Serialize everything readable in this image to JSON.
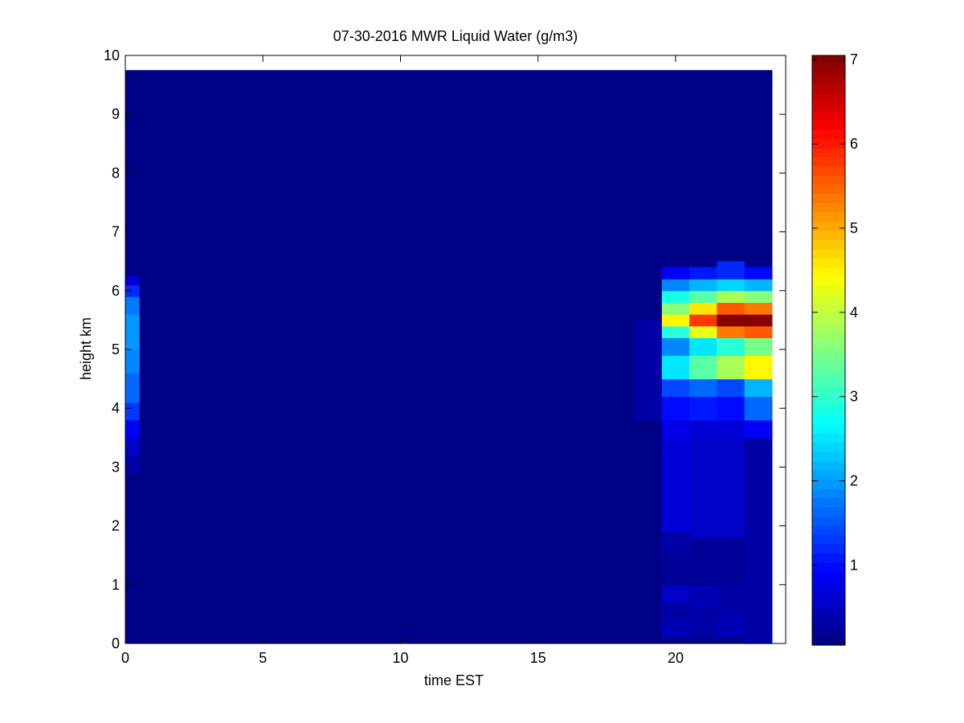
{
  "chart_data": {
    "type": "heatmap",
    "title": "07-30-2016 MWR Liquid Water (g/m3)",
    "xlabel": "time EST",
    "ylabel": "height km",
    "xlim": [
      0,
      24
    ],
    "ylim": [
      0,
      10
    ],
    "x_ticks": [
      0,
      5,
      10,
      15,
      20
    ],
    "y_ticks": [
      0,
      1,
      2,
      3,
      4,
      5,
      6,
      7,
      8,
      9,
      10
    ],
    "colorbar": {
      "colormap": "jet",
      "range": [
        0.05,
        7.05
      ],
      "ticks": [
        1,
        2,
        3,
        4,
        5,
        6,
        7
      ]
    },
    "background_value": 0.05,
    "time_bins": [
      {
        "x0": 0,
        "x1": 0.5,
        "height_range": [
          0,
          9.75
        ]
      },
      {
        "x0": 0.5,
        "x1": 18.5,
        "height_range": [
          0,
          9.75
        ]
      },
      {
        "x0": 18.5,
        "x1": 19.5,
        "height_range": [
          0,
          9.75
        ]
      },
      {
        "x0": 19.5,
        "x1": 20.5,
        "height_range": [
          0,
          9.75
        ]
      },
      {
        "x0": 20.5,
        "x1": 21.5,
        "height_range": [
          0,
          9.75
        ]
      },
      {
        "x0": 21.5,
        "x1": 22.5,
        "height_range": [
          0,
          9.75
        ]
      },
      {
        "x0": 22.5,
        "x1": 23.5,
        "height_range": [
          0,
          9.75
        ]
      }
    ],
    "columns": [
      {
        "time": 0,
        "cells": [
          {
            "z0": 2.9,
            "z1": 3.2,
            "value": 0.3
          },
          {
            "z0": 3.2,
            "z1": 3.5,
            "value": 0.5
          },
          {
            "z0": 3.5,
            "z1": 3.8,
            "value": 0.9
          },
          {
            "z0": 3.8,
            "z1": 4.1,
            "value": 1.3
          },
          {
            "z0": 4.1,
            "z1": 4.6,
            "value": 1.6
          },
          {
            "z0": 4.6,
            "z1": 5.0,
            "value": 1.8
          },
          {
            "z0": 5.0,
            "z1": 5.6,
            "value": 2.0
          },
          {
            "z0": 5.6,
            "z1": 5.9,
            "value": 1.7
          },
          {
            "z0": 5.9,
            "z1": 6.1,
            "value": 1.2
          },
          {
            "z0": 6.1,
            "z1": 6.25,
            "value": 0.6
          }
        ]
      },
      {
        "time": 19,
        "cells": [
          {
            "z0": 3.8,
            "z1": 5.5,
            "value": 0.3
          }
        ]
      },
      {
        "time": 20,
        "cells": [
          {
            "z0": 0.1,
            "z1": 0.4,
            "value": 0.4
          },
          {
            "z0": 0.4,
            "z1": 0.7,
            "value": 0.3
          },
          {
            "z0": 0.7,
            "z1": 1.0,
            "value": 0.5
          },
          {
            "z0": 1.0,
            "z1": 1.5,
            "value": 0.2
          },
          {
            "z0": 1.5,
            "z1": 1.9,
            "value": 0.3
          },
          {
            "z0": 1.9,
            "z1": 3.5,
            "value": 0.6
          },
          {
            "z0": 3.5,
            "z1": 3.8,
            "value": 0.8
          },
          {
            "z0": 3.8,
            "z1": 4.2,
            "value": 1.0
          },
          {
            "z0": 4.2,
            "z1": 4.5,
            "value": 1.4
          },
          {
            "z0": 4.5,
            "z1": 4.9,
            "value": 2.5
          },
          {
            "z0": 4.9,
            "z1": 5.2,
            "value": 1.9
          },
          {
            "z0": 5.2,
            "z1": 5.4,
            "value": 3.0
          },
          {
            "z0": 5.4,
            "z1": 5.6,
            "value": 4.5
          },
          {
            "z0": 5.6,
            "z1": 5.8,
            "value": 3.6
          },
          {
            "z0": 5.8,
            "z1": 6.0,
            "value": 2.8
          },
          {
            "z0": 6.0,
            "z1": 6.2,
            "value": 1.8
          },
          {
            "z0": 6.2,
            "z1": 6.4,
            "value": 0.9
          }
        ]
      },
      {
        "time": 21,
        "cells": [
          {
            "z0": 0.1,
            "z1": 0.6,
            "value": 0.3
          },
          {
            "z0": 0.6,
            "z1": 1.0,
            "value": 0.4
          },
          {
            "z0": 1.0,
            "z1": 1.8,
            "value": 0.2
          },
          {
            "z0": 1.8,
            "z1": 3.5,
            "value": 0.5
          },
          {
            "z0": 3.5,
            "z1": 3.8,
            "value": 0.7
          },
          {
            "z0": 3.8,
            "z1": 4.2,
            "value": 1.1
          },
          {
            "z0": 4.2,
            "z1": 4.5,
            "value": 1.6
          },
          {
            "z0": 4.5,
            "z1": 4.9,
            "value": 3.3
          },
          {
            "z0": 4.9,
            "z1": 5.2,
            "value": 2.5
          },
          {
            "z0": 5.2,
            "z1": 5.4,
            "value": 4.3
          },
          {
            "z0": 5.4,
            "z1": 5.6,
            "value": 5.8
          },
          {
            "z0": 5.6,
            "z1": 5.8,
            "value": 4.6
          },
          {
            "z0": 5.8,
            "z1": 6.0,
            "value": 3.3
          },
          {
            "z0": 6.0,
            "z1": 6.2,
            "value": 2.2
          },
          {
            "z0": 6.2,
            "z1": 6.4,
            "value": 1.1
          }
        ]
      },
      {
        "time": 22,
        "cells": [
          {
            "z0": 0.1,
            "z1": 0.5,
            "value": 0.4
          },
          {
            "z0": 0.5,
            "z1": 1.0,
            "value": 0.3
          },
          {
            "z0": 1.0,
            "z1": 1.8,
            "value": 0.2
          },
          {
            "z0": 1.8,
            "z1": 3.5,
            "value": 0.5
          },
          {
            "z0": 3.5,
            "z1": 3.8,
            "value": 0.7
          },
          {
            "z0": 3.8,
            "z1": 4.2,
            "value": 1.0
          },
          {
            "z0": 4.2,
            "z1": 4.5,
            "value": 1.4
          },
          {
            "z0": 4.5,
            "z1": 4.9,
            "value": 3.8
          },
          {
            "z0": 4.9,
            "z1": 5.2,
            "value": 3.0
          },
          {
            "z0": 5.2,
            "z1": 5.4,
            "value": 5.3
          },
          {
            "z0": 5.4,
            "z1": 5.6,
            "value": 7.0
          },
          {
            "z0": 5.6,
            "z1": 5.8,
            "value": 5.6
          },
          {
            "z0": 5.8,
            "z1": 6.0,
            "value": 3.8
          },
          {
            "z0": 6.0,
            "z1": 6.2,
            "value": 2.4
          },
          {
            "z0": 6.2,
            "z1": 6.5,
            "value": 1.2
          }
        ]
      },
      {
        "time": 23,
        "cells": [
          {
            "z0": 0.0,
            "z1": 3.5,
            "value": 0.3
          },
          {
            "z0": 3.5,
            "z1": 3.8,
            "value": 0.9
          },
          {
            "z0": 3.8,
            "z1": 4.2,
            "value": 1.6
          },
          {
            "z0": 4.2,
            "z1": 4.5,
            "value": 2.2
          },
          {
            "z0": 4.5,
            "z1": 4.9,
            "value": 4.5
          },
          {
            "z0": 4.9,
            "z1": 5.2,
            "value": 3.5
          },
          {
            "z0": 5.2,
            "z1": 5.4,
            "value": 5.6
          },
          {
            "z0": 5.4,
            "z1": 5.6,
            "value": 7.0
          },
          {
            "z0": 5.6,
            "z1": 5.8,
            "value": 5.3
          },
          {
            "z0": 5.8,
            "z1": 6.0,
            "value": 3.6
          },
          {
            "z0": 6.0,
            "z1": 6.2,
            "value": 2.2
          },
          {
            "z0": 6.2,
            "z1": 6.4,
            "value": 1.0
          }
        ]
      }
    ]
  }
}
